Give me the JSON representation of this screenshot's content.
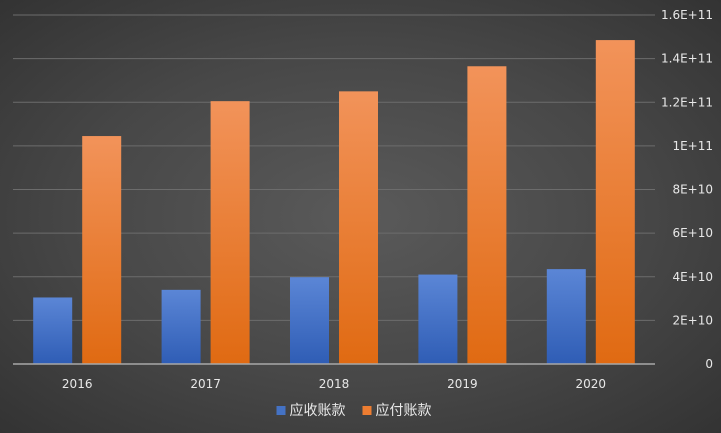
{
  "chart_data": {
    "type": "bar",
    "categories": [
      "2016",
      "2017",
      "2018",
      "2019",
      "2020"
    ],
    "series": [
      {
        "name": "应收账款",
        "values": [
          30500000000,
          34000000000,
          39800000000,
          41000000000,
          43500000000
        ],
        "color": "#4472c4"
      },
      {
        "name": "应付账款",
        "values": [
          104500000000,
          120500000000,
          125000000000,
          136500000000,
          148500000000
        ],
        "color": "#ed7d31"
      }
    ],
    "y_ticks": [
      {
        "value": 0,
        "label": "0"
      },
      {
        "value": 20000000000,
        "label": "2E+10"
      },
      {
        "value": 40000000000,
        "label": "4E+10"
      },
      {
        "value": 60000000000,
        "label": "6E+10"
      },
      {
        "value": 80000000000,
        "label": "8E+10"
      },
      {
        "value": 100000000000,
        "label": "1E+11"
      },
      {
        "value": 120000000000,
        "label": "1.2E+11"
      },
      {
        "value": 140000000000,
        "label": "1.4E+11"
      },
      {
        "value": 160000000000,
        "label": "1.6E+11"
      }
    ],
    "ylim": [
      0,
      160000000000
    ],
    "y_axis_side": "right",
    "grid": true,
    "legend_position": "bottom",
    "title": "",
    "xlabel": "",
    "ylabel": ""
  }
}
